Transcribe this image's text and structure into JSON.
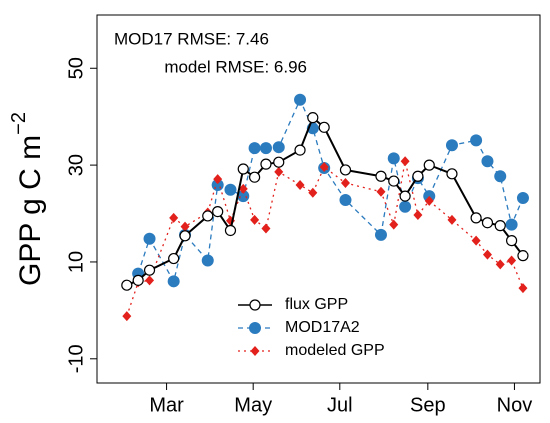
{
  "chart_data": {
    "type": "line",
    "ylabel": "GPP g C m",
    "ylabel_exponent": "−2",
    "annotations": [
      "MOD17 RMSE: 7.46",
      "model RMSE: 6.96"
    ],
    "xlim": [
      11,
      323
    ],
    "xticks": [
      {
        "value": 60,
        "label": "Mar"
      },
      {
        "value": 121,
        "label": "May"
      },
      {
        "value": 182,
        "label": "Jul"
      },
      {
        "value": 244,
        "label": "Sep"
      },
      {
        "value": 305,
        "label": "Nov"
      }
    ],
    "ylim": [
      -15,
      61
    ],
    "yticks": [
      -10,
      10,
      30,
      50
    ],
    "legend": "bottom",
    "series": [
      {
        "name": "flux GPP",
        "color": "#000000",
        "marker": "open-circle",
        "dash": "solid",
        "x": [
          32,
          40,
          48,
          65,
          73,
          89,
          96,
          105,
          114,
          122,
          130,
          139,
          154,
          163,
          171,
          186,
          211,
          220,
          228,
          237,
          245,
          261,
          278,
          286,
          295,
          303,
          311
        ],
        "values": [
          5.2,
          6.2,
          8.3,
          10.7,
          15.4,
          19.5,
          20.4,
          16.5,
          29.2,
          27.5,
          30.2,
          30.6,
          33.1,
          39.8,
          37.8,
          29.0,
          27.7,
          26.7,
          23.6,
          27.7,
          30.0,
          28.2,
          19.1,
          18.1,
          17.5,
          14.4,
          11.3
        ]
      },
      {
        "name": "MOD17A2",
        "color": "#2b7bbf",
        "marker": "circle",
        "dash": "dashed",
        "x": [
          40,
          48,
          65,
          73,
          89,
          96,
          105,
          114,
          122,
          130,
          139,
          154,
          163,
          171,
          186,
          211,
          220,
          228,
          237,
          245,
          261,
          278,
          286,
          295,
          303,
          311
        ],
        "values": [
          7.6,
          14.8,
          6.0,
          15.6,
          10.3,
          25.9,
          24.9,
          23.6,
          33.5,
          33.5,
          33.7,
          43.5,
          37.6,
          29.4,
          22.8,
          15.6,
          31.4,
          21.4,
          27.3,
          23.6,
          34.1,
          35.1,
          30.8,
          27.7,
          17.7,
          23.2
        ]
      },
      {
        "name": "modeled GPP",
        "color": "#e3211c",
        "marker": "diamond",
        "dash": "dotted",
        "x": [
          32,
          40,
          48,
          65,
          73,
          89,
          96,
          105,
          114,
          122,
          130,
          139,
          154,
          163,
          171,
          186,
          211,
          220,
          228,
          237,
          245,
          261,
          278,
          286,
          295,
          303,
          311
        ],
        "values": [
          -1.2,
          5.8,
          6.2,
          19.1,
          17.3,
          20.2,
          27.1,
          18.5,
          25.1,
          18.7,
          16.9,
          28.6,
          25.9,
          24.3,
          29.6,
          26.3,
          24.5,
          17.7,
          30.8,
          19.7,
          22.6,
          18.7,
          14.4,
          11.5,
          9.5,
          10.3,
          4.6
        ]
      }
    ]
  }
}
